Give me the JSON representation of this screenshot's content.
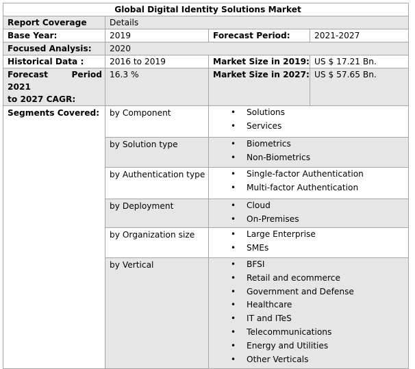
{
  "title": "Global Digital Identity Solutions Market",
  "rows": {
    "coverage": {
      "label": "Report Coverage",
      "value": "Details"
    },
    "base_year": {
      "label": "Base Year:",
      "value": "2019",
      "label2": "Forecast Period:",
      "value2": "2021-2027"
    },
    "focused": {
      "label": "Focused Analysis:",
      "value": "2020"
    },
    "historical": {
      "label": "Historical Data :",
      "value": "2016 to 2019",
      "label2": "Market Size in 2019:",
      "value2": "US $ 17.21 Bn."
    },
    "forecast": {
      "label_line1": "Forecast   Period   2021",
      "label_line2": "to 2027 CAGR:",
      "value": "16.3 %",
      "label2": "Market Size in 2027:",
      "value2": "US $ 57.65 Bn."
    }
  },
  "segments": {
    "label": "Segments Covered:",
    "groups": [
      {
        "name": "by Component",
        "items": [
          "Solutions",
          "Services"
        ]
      },
      {
        "name": "by Solution type",
        "items": [
          "Biometrics",
          "Non-Biometrics"
        ]
      },
      {
        "name": "by Authentication type",
        "items": [
          "Single-factor Authentication",
          "Multi-factor Authentication"
        ]
      },
      {
        "name": "by Deployment",
        "items": [
          "Cloud",
          "On-Premises"
        ]
      },
      {
        "name": "by Organization size",
        "items": [
          "Large Enterprise",
          "SMEs"
        ]
      },
      {
        "name": "by Vertical",
        "items": [
          "BFSI",
          "Retail and ecommerce",
          "Government and Defense",
          "Healthcare",
          "IT and ITeS",
          "Telecommunications",
          "Energy and Utilities",
          "Other Verticals"
        ]
      }
    ]
  }
}
